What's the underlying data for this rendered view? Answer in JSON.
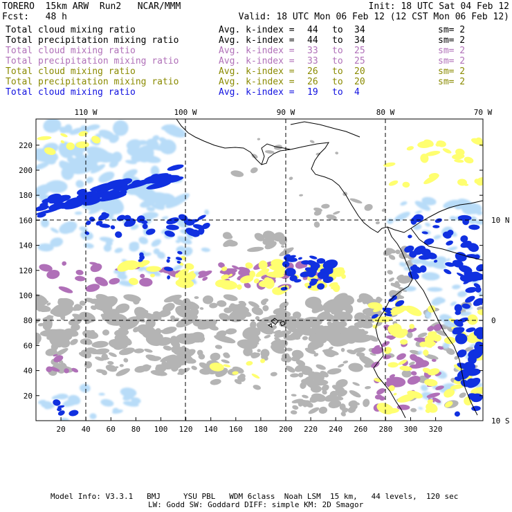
{
  "header": {
    "model": "TORERO",
    "resolution": "15km ARW",
    "run": "Run2",
    "org": "NCAR/MMM",
    "init": "Init: 18 UTC Sat 04 Feb 12",
    "fcst_label": "Fcst:",
    "fcst_value": "48 h",
    "valid": "Valid: 18 UTC Mon 06 Feb 12 (12 CST Mon 06 Feb 12)"
  },
  "legend": [
    {
      "field": "Total cloud mixing ratio",
      "index_label": "Avg. k-index =",
      "from": "44",
      "to_word": "to",
      "to": "34",
      "sm": "sm= 2",
      "color": "#000000"
    },
    {
      "field": "Total precipitation mixing ratio",
      "index_label": "Avg. k-index =",
      "from": "44",
      "to_word": "to",
      "to": "34",
      "sm": "sm= 2",
      "color": "#000000"
    },
    {
      "field": "Total cloud mixing ratio",
      "index_label": "Avg. k-index =",
      "from": "33",
      "to_word": "to",
      "to": "25",
      "sm": "sm= 2",
      "color": "#b070b8"
    },
    {
      "field": "Total precipitation mixing ratio",
      "index_label": "Avg. k-index =",
      "from": "33",
      "to_word": "to",
      "to": "25",
      "sm": "sm= 2",
      "color": "#b070b8"
    },
    {
      "field": "Total cloud mixing ratio",
      "index_label": "Avg. k-index =",
      "from": "26",
      "to_word": "to",
      "to": "20",
      "sm": "sm= 2",
      "color": "#8a8a00"
    },
    {
      "field": "Total precipitation mixing ratio",
      "index_label": "Avg. k-index =",
      "from": "26",
      "to_word": "to",
      "to": "20",
      "sm": "sm= 2",
      "color": "#8a8a00"
    },
    {
      "field": "Total cloud mixing ratio",
      "index_label": "Avg. k-index =",
      "from": "19",
      "to_word": "to",
      "to": "4",
      "sm": "",
      "color": "#1010e0"
    }
  ],
  "map": {
    "top_labels": [
      "110 W",
      "100 W",
      "90 W",
      "80 W",
      "70 W"
    ],
    "right_labels": [
      "10 N",
      "0",
      "10 S"
    ],
    "left_ticks": [
      "220",
      "200",
      "180",
      "160",
      "140",
      "120",
      "100",
      "80",
      "60",
      "40",
      "20"
    ],
    "bottom_ticks": [
      "20",
      "40",
      "60",
      "80",
      "100",
      "120",
      "140",
      "160",
      "180",
      "200",
      "220",
      "240",
      "260",
      "280",
      "300",
      "320"
    ],
    "colors": {
      "gray": "#b4b4b4",
      "purple": "#b070b8",
      "yellow": "#ffff70",
      "blue": "#1030e0",
      "light_blue": "#b8dcf8",
      "coast": "#000000"
    }
  },
  "footer": {
    "line1": "Model Info: V3.3.1   BMJ     YSU PBL   WDM 6class  Noah LSM  15 km,   44 levels,  120 sec",
    "line2": "LW: Godd SW: Goddard DIFF: simple KM: 2D Smagor"
  }
}
